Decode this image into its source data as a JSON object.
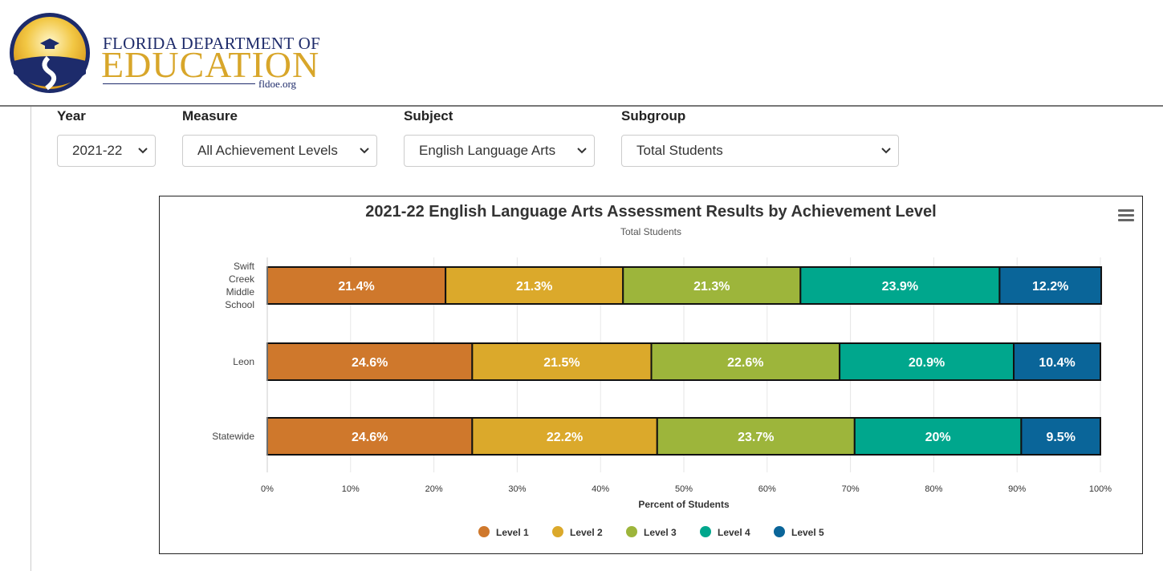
{
  "logo": {
    "line1": "FLORIDA DEPARTMENT OF",
    "line2": "EDUCATION",
    "url": "fldoe.org"
  },
  "filters": [
    {
      "label": "Year",
      "value": "2021-22"
    },
    {
      "label": "Measure",
      "value": "All Achievement Levels"
    },
    {
      "label": "Subject",
      "value": "English Language Arts"
    },
    {
      "label": "Subgroup",
      "value": "Total Students"
    }
  ],
  "colors": {
    "level1": "#cf782c",
    "level2": "#dba92b",
    "level3": "#9db53b",
    "level4": "#00a78d",
    "level5": "#0a6599"
  },
  "chart_data": {
    "type": "bar",
    "orientation": "horizontal",
    "stacking": "percent",
    "title": "2021-22 English Language Arts Assessment Results by Achievement Level",
    "subtitle": "Total Students",
    "xlabel": "Percent of Students",
    "xlim": [
      0,
      100
    ],
    "xticks": [
      "0%",
      "10%",
      "20%",
      "30%",
      "40%",
      "50%",
      "60%",
      "70%",
      "80%",
      "90%",
      "100%"
    ],
    "categories": [
      "Swift Creek Middle School",
      "Leon",
      "Statewide"
    ],
    "category_label_lines": [
      [
        "Swift",
        "Creek",
        "Middle",
        "School"
      ],
      [
        "Leon"
      ],
      [
        "Statewide"
      ]
    ],
    "series": [
      {
        "name": "Level 1",
        "values": [
          21.4,
          24.6,
          24.6
        ],
        "labels": [
          "21.4%",
          "24.6%",
          "24.6%"
        ]
      },
      {
        "name": "Level 2",
        "values": [
          21.3,
          21.5,
          22.2
        ],
        "labels": [
          "21.3%",
          "21.5%",
          "22.2%"
        ]
      },
      {
        "name": "Level 3",
        "values": [
          21.3,
          22.6,
          23.7
        ],
        "labels": [
          "21.3%",
          "22.6%",
          "23.7%"
        ]
      },
      {
        "name": "Level 4",
        "values": [
          23.9,
          20.9,
          20.0
        ],
        "labels": [
          "23.9%",
          "20.9%",
          "20%"
        ]
      },
      {
        "name": "Level 5",
        "values": [
          12.2,
          10.4,
          9.5
        ],
        "labels": [
          "12.2%",
          "10.4%",
          "9.5%"
        ]
      }
    ],
    "grid": true,
    "legend": "bottom-center"
  }
}
